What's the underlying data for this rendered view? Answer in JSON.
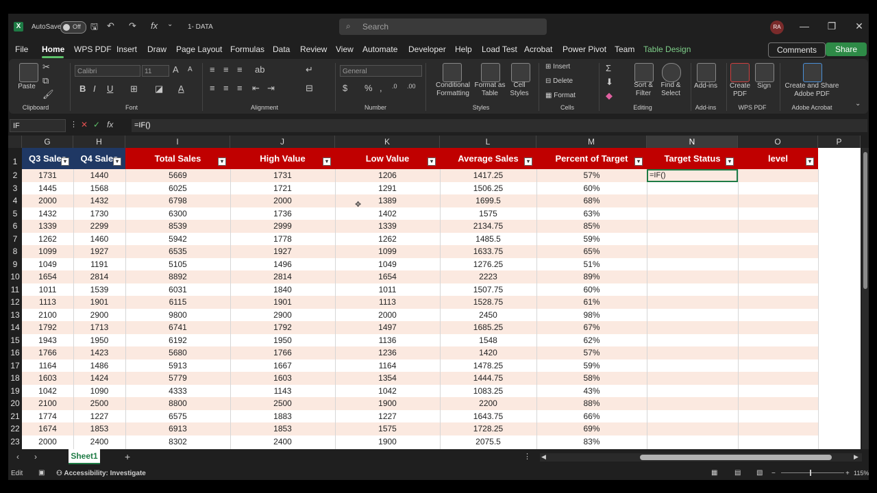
{
  "titlebar": {
    "autosave_label": "AutoSave",
    "autosave_state": "Off",
    "filename": "1- DATA",
    "search_placeholder": "Search",
    "user_initials": "RA"
  },
  "menu": {
    "tabs": [
      "File",
      "Home",
      "WPS PDF",
      "Insert",
      "Draw",
      "Page Layout",
      "Formulas",
      "Data",
      "Review",
      "View",
      "Automate",
      "Developer",
      "Help",
      "Load Test",
      "Acrobat",
      "Power Pivot",
      "Team",
      "Table Design"
    ],
    "comments_label": "Comments",
    "share_label": "Share"
  },
  "ribbon": {
    "paste_label": "Paste",
    "font_name": "Calibri",
    "font_size": "11",
    "number_format": "General",
    "conditional_formatting": "Conditional Formatting",
    "format_as_table": "Format as Table",
    "cell_styles": "Cell Styles",
    "insert_label": "Insert",
    "delete_label": "Delete",
    "format_label": "Format",
    "sort_filter": "Sort & Filter",
    "find_select": "Find & Select",
    "addins": "Add-ins",
    "create_pdf": "Create PDF",
    "sign": "Sign",
    "create_share": "Create and Share Adobe PDF",
    "groups": {
      "clipboard": "Clipboard",
      "font": "Font",
      "alignment": "Alignment",
      "number": "Number",
      "styles": "Styles",
      "cells": "Cells",
      "editing": "Editing",
      "addins": "Add-ins",
      "wpspdf": "WPS PDF",
      "adobe": "Adobe Acrobat"
    }
  },
  "formula_bar": {
    "name_box": "IF",
    "fx": "fx",
    "formula": "=IF()"
  },
  "columns": [
    "G",
    "H",
    "I",
    "J",
    "K",
    "L",
    "M",
    "N",
    "O",
    "P"
  ],
  "table": {
    "headers": [
      "Q3 Sales",
      "Q4 Sales",
      "Total Sales",
      "High Value",
      "Low Value",
      "Average Sales",
      "Percent of Target",
      "Target Status",
      "level"
    ],
    "header_colors": {
      "blue": "#1f3864",
      "red": "#c00000"
    },
    "band_color": "#fbe9e0",
    "active_cell_text": "=IF()",
    "rows": [
      [
        "1731",
        "1440",
        "5669",
        "1731",
        "1206",
        "1417.25",
        "57%"
      ],
      [
        "1445",
        "1568",
        "6025",
        "1721",
        "1291",
        "1506.25",
        "60%"
      ],
      [
        "2000",
        "1432",
        "6798",
        "2000",
        "1389",
        "1699.5",
        "68%"
      ],
      [
        "1432",
        "1730",
        "6300",
        "1736",
        "1402",
        "1575",
        "63%"
      ],
      [
        "1339",
        "2299",
        "8539",
        "2999",
        "1339",
        "2134.75",
        "85%"
      ],
      [
        "1262",
        "1460",
        "5942",
        "1778",
        "1262",
        "1485.5",
        "59%"
      ],
      [
        "1099",
        "1927",
        "6535",
        "1927",
        "1099",
        "1633.75",
        "65%"
      ],
      [
        "1049",
        "1191",
        "5105",
        "1496",
        "1049",
        "1276.25",
        "51%"
      ],
      [
        "1654",
        "2814",
        "8892",
        "2814",
        "1654",
        "2223",
        "89%"
      ],
      [
        "1011",
        "1539",
        "6031",
        "1840",
        "1011",
        "1507.75",
        "60%"
      ],
      [
        "1113",
        "1901",
        "6115",
        "1901",
        "1113",
        "1528.75",
        "61%"
      ],
      [
        "2100",
        "2900",
        "9800",
        "2900",
        "2000",
        "2450",
        "98%"
      ],
      [
        "1792",
        "1713",
        "6741",
        "1792",
        "1497",
        "1685.25",
        "67%"
      ],
      [
        "1943",
        "1950",
        "6192",
        "1950",
        "1136",
        "1548",
        "62%"
      ],
      [
        "1766",
        "1423",
        "5680",
        "1766",
        "1236",
        "1420",
        "57%"
      ],
      [
        "1164",
        "1486",
        "5913",
        "1667",
        "1164",
        "1478.25",
        "59%"
      ],
      [
        "1603",
        "1424",
        "5779",
        "1603",
        "1354",
        "1444.75",
        "58%"
      ],
      [
        "1042",
        "1090",
        "4333",
        "1143",
        "1042",
        "1083.25",
        "43%"
      ],
      [
        "2100",
        "2500",
        "8800",
        "2500",
        "1900",
        "2200",
        "88%"
      ],
      [
        "1774",
        "1227",
        "6575",
        "1883",
        "1227",
        "1643.75",
        "66%"
      ],
      [
        "1674",
        "1853",
        "6913",
        "1853",
        "1575",
        "1728.25",
        "69%"
      ],
      [
        "2000",
        "2400",
        "8302",
        "2400",
        "1900",
        "2075.5",
        "83%"
      ]
    ]
  },
  "tabs": {
    "sheet1": "Sheet1",
    "add": "+"
  },
  "status": {
    "mode": "Edit",
    "accessibility": "Accessibility: Investigate",
    "zoom": "115%"
  }
}
